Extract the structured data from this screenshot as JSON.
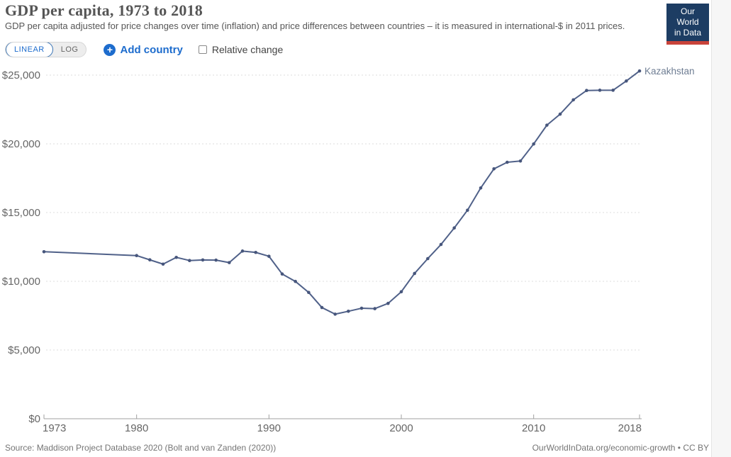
{
  "header": {
    "title": "GDP per capita, 1973 to 2018",
    "subtitle": "GDP per capita adjusted for price changes over time (inflation) and price differences between countries – it is measured in international-$ in 2011 prices.",
    "logo_line1": "Our World",
    "logo_line2": "in Data"
  },
  "controls": {
    "linear_label": "LINEAR",
    "log_label": "LOG",
    "add_country_label": "Add country",
    "relative_change_label": "Relative change",
    "relative_change_checked": false
  },
  "colors": {
    "accent_blue": "#1d6ccd",
    "line": "#506189",
    "marker": "#47567c",
    "entity_label": "#6e7d93",
    "gridline": "#dddddd",
    "axis": "#a0a0a0",
    "tick_text": "#666666",
    "logo_bg": "#1d3d63",
    "logo_red": "#c8433a"
  },
  "chart_data": {
    "type": "line",
    "title": "GDP per capita, 1973 to 2018",
    "xlabel": "",
    "ylabel": "",
    "xlim": [
      1973,
      2018
    ],
    "ylim": [
      0,
      25000
    ],
    "x_ticks": [
      1973,
      1980,
      1990,
      2000,
      2010,
      2018
    ],
    "y_ticks": [
      0,
      5000,
      10000,
      15000,
      20000,
      25000
    ],
    "grid": "dashed-horizontal",
    "legend_position": "end-of-line-label",
    "series": [
      {
        "name": "Kazakhstan",
        "points": [
          [
            1973,
            12150
          ],
          [
            1980,
            11870
          ],
          [
            1981,
            11560
          ],
          [
            1982,
            11250
          ],
          [
            1983,
            11740
          ],
          [
            1984,
            11510
          ],
          [
            1985,
            11550
          ],
          [
            1986,
            11540
          ],
          [
            1987,
            11360
          ],
          [
            1988,
            12200
          ],
          [
            1989,
            12100
          ],
          [
            1990,
            11820
          ],
          [
            1991,
            10530
          ],
          [
            1992,
            9990
          ],
          [
            1993,
            9190
          ],
          [
            1994,
            8090
          ],
          [
            1995,
            7610
          ],
          [
            1996,
            7820
          ],
          [
            1997,
            8040
          ],
          [
            1998,
            8010
          ],
          [
            1999,
            8390
          ],
          [
            2000,
            9240
          ],
          [
            2001,
            10570
          ],
          [
            2002,
            11650
          ],
          [
            2003,
            12680
          ],
          [
            2004,
            13880
          ],
          [
            2005,
            15170
          ],
          [
            2006,
            16790
          ],
          [
            2007,
            18180
          ],
          [
            2008,
            18660
          ],
          [
            2009,
            18750
          ],
          [
            2010,
            19990
          ],
          [
            2011,
            21360
          ],
          [
            2012,
            22160
          ],
          [
            2013,
            23200
          ],
          [
            2014,
            23880
          ],
          [
            2015,
            23900
          ],
          [
            2016,
            23900
          ],
          [
            2017,
            24570
          ],
          [
            2018,
            25300
          ]
        ]
      }
    ]
  },
  "footer": {
    "source": "Source: Maddison Project Database 2020 (Bolt and van Zanden (2020))",
    "credit": "OurWorldInData.org/economic-growth • CC BY"
  }
}
